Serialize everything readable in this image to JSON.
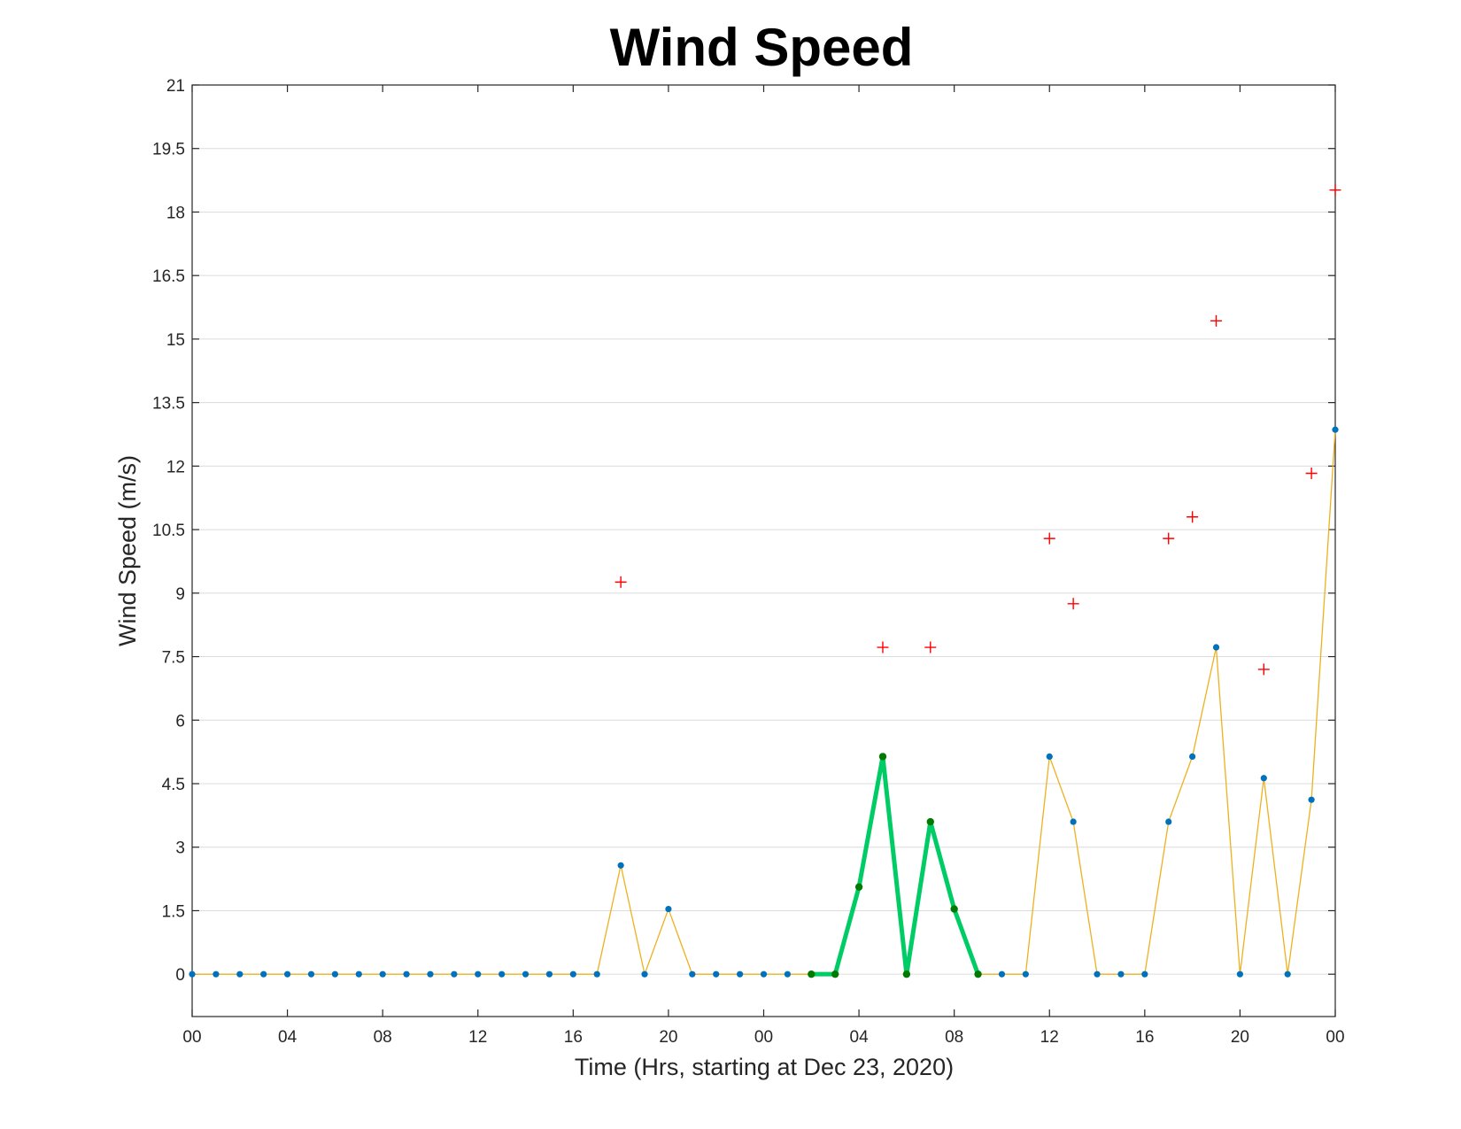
{
  "chart_data": {
    "type": "line",
    "title": "Wind Speed",
    "xlabel": "Time (Hrs, starting at Dec 23, 2020)",
    "ylabel": "Wind Speed (m/s)",
    "xlim": [
      0,
      48
    ],
    "ylim": [
      -1,
      21
    ],
    "x_ticks": [
      0,
      4,
      8,
      12,
      16,
      20,
      24,
      28,
      32,
      36,
      40,
      44,
      48
    ],
    "x_tick_labels": [
      "00",
      "04",
      "08",
      "12",
      "16",
      "20",
      "00",
      "04",
      "08",
      "12",
      "16",
      "20",
      "00"
    ],
    "y_ticks": [
      0,
      1.5,
      3,
      4.5,
      6,
      7.5,
      9,
      10.5,
      12,
      13.5,
      15,
      16.5,
      18,
      19.5,
      21
    ],
    "y_tick_labels": [
      "0",
      "1.5",
      "3",
      "4.5",
      "6",
      "7.5",
      "9",
      "10.5",
      "12",
      "13.5",
      "15",
      "16.5",
      "18",
      "19.5",
      "21"
    ],
    "grid": "horizontal",
    "series": [
      {
        "kind": "line-with-markers",
        "color": "#edb120",
        "marker_color": "#0072bd",
        "x": [
          0,
          1,
          2,
          3,
          4,
          5,
          6,
          7,
          8,
          9,
          10,
          11,
          12,
          13,
          14,
          15,
          16,
          17,
          18,
          19,
          20,
          21,
          22,
          23,
          24,
          25,
          26,
          27,
          28,
          29,
          30,
          31,
          32,
          33,
          34,
          35,
          36,
          37,
          38,
          39,
          40,
          41,
          42,
          43,
          44,
          45,
          46,
          47,
          48
        ],
        "values": [
          0,
          0,
          0,
          0,
          0,
          0,
          0,
          0,
          0,
          0,
          0,
          0,
          0,
          0,
          0,
          0,
          0,
          0,
          2.57,
          0,
          1.54,
          0,
          0,
          0,
          0,
          0,
          0,
          0,
          2.06,
          5.14,
          0,
          3.6,
          1.54,
          0,
          0,
          0,
          5.14,
          3.6,
          0,
          0,
          0,
          3.6,
          5.14,
          7.72,
          0,
          4.63,
          0,
          4.12,
          12.86
        ]
      },
      {
        "kind": "highlight-line",
        "color": "#00cc66",
        "marker_color": "#007a00",
        "x": [
          26,
          27,
          28,
          29,
          30,
          31,
          32,
          33
        ],
        "values": [
          0,
          0,
          2.06,
          5.14,
          0,
          3.6,
          1.54,
          0
        ]
      },
      {
        "kind": "plus-markers",
        "color": "#ff0000",
        "x": [
          18,
          29,
          31,
          36,
          37,
          41,
          42,
          43,
          45,
          47,
          48
        ],
        "values": [
          9.26,
          7.72,
          7.72,
          10.29,
          8.75,
          10.29,
          10.8,
          15.43,
          7.2,
          11.83,
          18.52
        ]
      }
    ]
  }
}
